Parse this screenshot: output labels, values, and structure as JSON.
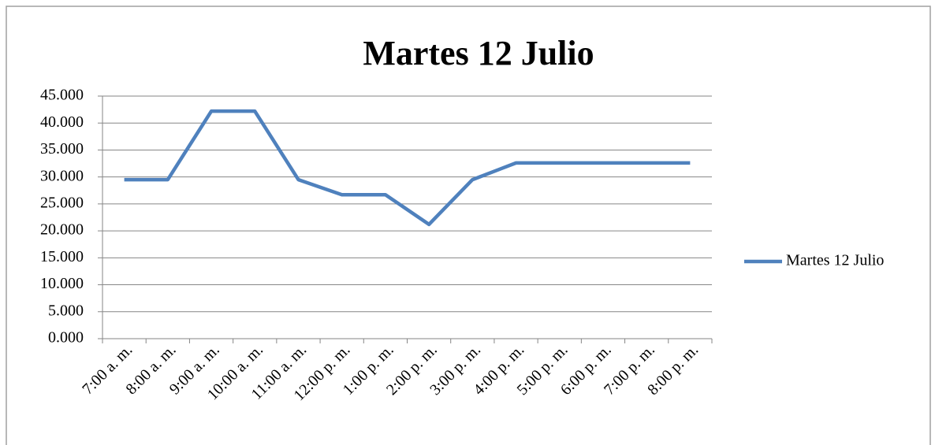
{
  "chart_data": {
    "type": "line",
    "title": "Martes 12 Julio",
    "categories": [
      "7:00 a. m.",
      "8:00 a. m.",
      "9:00 a. m.",
      "10:00 a. m.",
      "11:00 a. m.",
      "12:00 p. m.",
      "1:00 p. m.",
      "2:00 p. m.",
      "3:00 p. m.",
      "4:00 p. m.",
      "5:00 p. m.",
      "6:00 p. m.",
      "7:00 p. m.",
      "8:00 p. m."
    ],
    "series": [
      {
        "name": "Martes 12 Julio",
        "color": "#4f81bd",
        "values": [
          29.5,
          29.5,
          42.2,
          42.2,
          29.5,
          26.7,
          26.7,
          21.2,
          29.5,
          32.6,
          32.6,
          32.6,
          32.6,
          32.6
        ]
      }
    ],
    "ylim": [
      0,
      45
    ],
    "yticks": [
      {
        "value": 0,
        "label": "0.000"
      },
      {
        "value": 5,
        "label": "5.000"
      },
      {
        "value": 10,
        "label": "10.000"
      },
      {
        "value": 15,
        "label": "15.000"
      },
      {
        "value": 20,
        "label": "20.000"
      },
      {
        "value": 25,
        "label": "25.000"
      },
      {
        "value": 30,
        "label": "30.000"
      },
      {
        "value": 35,
        "label": "35.000"
      },
      {
        "value": 40,
        "label": "40.000"
      },
      {
        "value": 45,
        "label": "45.000"
      }
    ],
    "grid": true,
    "legend": "right"
  }
}
